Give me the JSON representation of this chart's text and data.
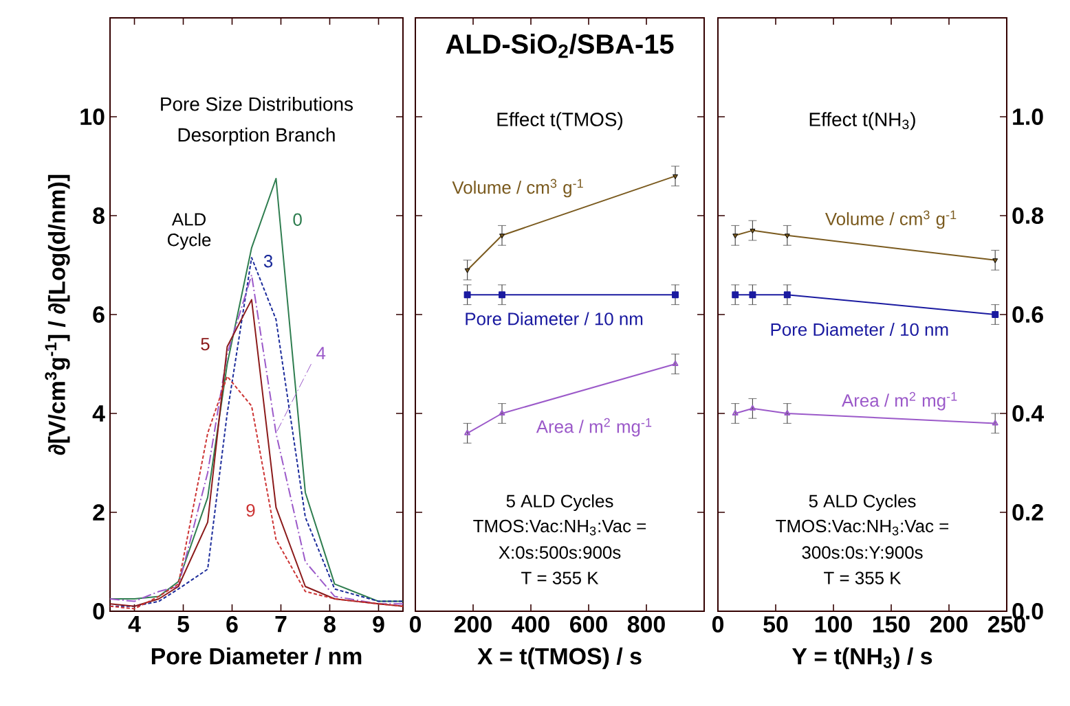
{
  "chart_data": [
    {
      "type": "line",
      "xlabel": "Pore Diameter / nm",
      "ylabel": "∂[V/cm$^{3}$g$^{-1}$] / ∂[Log(d/nm)]",
      "legend_title": "ALD Cycle",
      "annotations": [
        "Pore Size Distributions",
        "Desorption Branch"
      ],
      "xlim": [
        3.5,
        9.5
      ],
      "ylim": [
        0,
        12
      ],
      "xticks": [
        4,
        5,
        6,
        7,
        8,
        9
      ],
      "yticks": [
        0,
        2,
        4,
        6,
        8,
        10
      ],
      "x": [
        3.5,
        4.0,
        4.5,
        4.9,
        5.5,
        5.9,
        6.4,
        6.9,
        7.5,
        8.1,
        9.0,
        9.5
      ],
      "series": [
        {
          "name": "0",
          "color": "#2e7d4f",
          "line_style": "solid",
          "values": [
            0.25,
            0.25,
            0.3,
            0.6,
            2.3,
            5.0,
            7.35,
            8.75,
            2.4,
            0.55,
            0.2,
            0.2
          ]
        },
        {
          "name": "3",
          "color": "#1a2a9a",
          "line_style": "dashed",
          "values": [
            0.1,
            0.1,
            0.2,
            0.45,
            0.85,
            4.0,
            7.15,
            5.9,
            1.9,
            0.45,
            0.2,
            0.2
          ]
        },
        {
          "name": "4",
          "color": "#9b59c9",
          "line_style": "dashdot",
          "values": [
            0.25,
            0.2,
            0.4,
            0.5,
            2.8,
            5.2,
            6.8,
            3.6,
            1.0,
            0.3,
            0.15,
            0.15
          ]
        },
        {
          "name": "5",
          "color": "#8b1a1a",
          "line_style": "solid",
          "values": [
            0.15,
            0.1,
            0.25,
            0.5,
            1.8,
            5.35,
            6.3,
            2.1,
            0.5,
            0.25,
            0.15,
            0.1
          ]
        },
        {
          "name": "9",
          "color": "#cc3333",
          "line_style": "dashed",
          "values": [
            0.1,
            0.05,
            0.3,
            0.55,
            3.6,
            4.75,
            4.15,
            1.45,
            0.4,
            0.25,
            0.15,
            0.1
          ]
        }
      ]
    },
    {
      "type": "line",
      "title": "ALD-SiO$_{2}$/SBA-15",
      "subtitle": "Effect t(TMOS)",
      "xlabel": "X = t(TMOS) / s",
      "annotations": [
        "5 ALD Cycles",
        "TMOS:Vac:NH$_{3}$:Vac =",
        "X:0s:500s:900s",
        "T = 355 K"
      ],
      "xlim": [
        0,
        1000
      ],
      "ylim": [
        0,
        1.2
      ],
      "xticks": [
        0,
        200,
        400,
        600,
        800
      ],
      "yticks": [
        0,
        0.2,
        0.4,
        0.6,
        0.8,
        1.0
      ],
      "tick_labels": "x",
      "x": [
        180,
        300,
        900
      ],
      "series": [
        {
          "name": "Volume / cm$^{3}$ g$^{-1}$",
          "color": "#7a5a1e",
          "marker": "triangle",
          "values": [
            0.69,
            0.76,
            0.88
          ],
          "errors": [
            0.02,
            0.02,
            0.02
          ]
        },
        {
          "name": "Pore Diameter / 10 nm",
          "color": "#1a1aa0",
          "marker": "square",
          "values": [
            0.64,
            0.64,
            0.64
          ],
          "errors": [
            0.02,
            0.02,
            0.02
          ]
        },
        {
          "name": "Area / m$^{2}$ mg$^{-1}$",
          "color": "#9b59c9",
          "marker": "triangle",
          "values": [
            0.36,
            0.4,
            0.5
          ],
          "errors": [
            0.02,
            0.02,
            0.02
          ]
        }
      ]
    },
    {
      "type": "line",
      "subtitle": "Effect t(NH$_{3}$)",
      "xlabel": "Y = t(NH$_{3}$) / s",
      "annotations": [
        "5 ALD Cycles",
        "TMOS:Vac:NH$_{3}$:Vac =",
        "300s:0s:Y:900s",
        "T = 355 K"
      ],
      "xlim": [
        0,
        250
      ],
      "ylim": [
        0,
        1.2
      ],
      "xticks": [
        0,
        50,
        100,
        150,
        200,
        250
      ],
      "yticks": [
        {
          "value": 0,
          "label": "0.0"
        },
        {
          "value": 0.2,
          "label": "0.2"
        },
        {
          "value": 0.4,
          "label": "0.4"
        },
        {
          "value": 0.6,
          "label": "0.6"
        },
        {
          "value": 0.8,
          "label": "0.8"
        },
        {
          "value": 1.0,
          "label": "1.0"
        }
      ],
      "x": [
        15,
        30,
        60,
        240
      ],
      "series": [
        {
          "name": "Volume / cm$^{3}$ g$^{-1}$",
          "color": "#7a5a1e",
          "marker": "triangle",
          "values": [
            0.76,
            0.77,
            0.76,
            0.71
          ],
          "errors": [
            0.02,
            0.02,
            0.02,
            0.02
          ]
        },
        {
          "name": "Pore Diameter / 10 nm",
          "color": "#1a1aa0",
          "marker": "square",
          "values": [
            0.64,
            0.64,
            0.64,
            0.6
          ],
          "errors": [
            0.02,
            0.02,
            0.02,
            0.02
          ]
        },
        {
          "name": "Area / m$^{2}$ mg$^{-1}$",
          "color": "#9b59c9",
          "marker": "triangle",
          "values": [
            0.4,
            0.41,
            0.4,
            0.38
          ],
          "errors": [
            0.02,
            0.02,
            0.02,
            0.02
          ]
        }
      ]
    }
  ]
}
